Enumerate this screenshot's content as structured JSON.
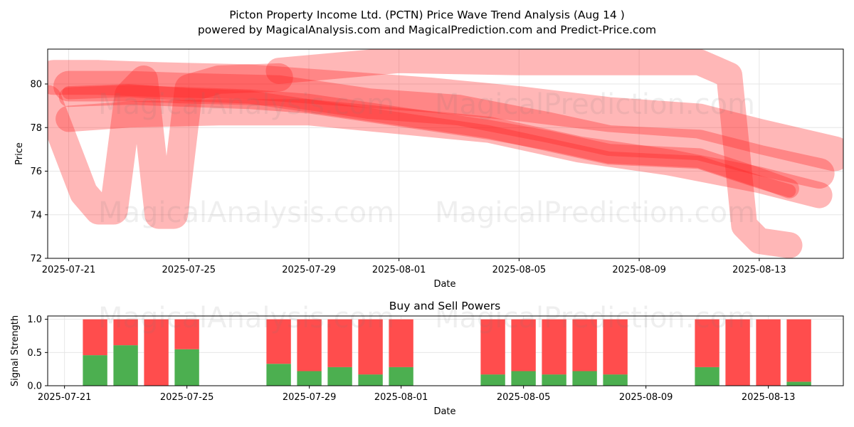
{
  "header": {
    "title": "Picton Property Income Ltd. (PCTN) Price Wave Trend Analysis (Aug 14 )",
    "subtitle": "powered by MagicalAnalysis.com and MagicalPrediction.com and Predict-Price.com"
  },
  "watermarks": [
    "MagicalAnalysis.com",
    "MagicalPrediction.com"
  ],
  "colors": {
    "wave": "#ff2020",
    "buy": "#4caf50",
    "sell": "#ff4d4d",
    "grid": "#e6e6e6"
  },
  "chart_data": [
    {
      "type": "area",
      "title": "",
      "xlabel": "Date",
      "ylabel": "Price",
      "ylim": [
        72,
        81.6
      ],
      "xlim": [
        "2025-07-20.3",
        "2025-08-15.8"
      ],
      "yticks": [
        72,
        74,
        76,
        78,
        80
      ],
      "xticks": [
        "2025-07-21",
        "2025-07-25",
        "2025-07-29",
        "2025-08-01",
        "2025-08-05",
        "2025-08-09",
        "2025-08-13"
      ],
      "grid": true,
      "series": [
        {
          "name": "",
          "band": 0.6,
          "x": [
            "2025-07-21",
            "2025-07-23",
            "2025-07-25",
            "2025-07-27",
            "2025-07-29",
            "2025-07-31",
            "2025-08-02",
            "2025-08-04",
            "2025-08-06",
            "2025-08-08",
            "2025-08-11",
            "2025-08-13",
            "2025-08-14"
          ],
          "y": [
            79.6,
            79.7,
            79.5,
            79.4,
            79.0,
            78.6,
            78.2,
            77.8,
            77.2,
            76.6,
            76.4,
            75.5,
            75.1
          ]
        },
        {
          "name": "",
          "band": 0.9,
          "x": [
            "2025-07-21",
            "2025-07-23",
            "2025-07-25",
            "2025-07-27",
            "2025-07-29",
            "2025-07-31",
            "2025-08-02",
            "2025-08-04",
            "2025-08-06",
            "2025-08-08",
            "2025-08-11",
            "2025-08-13",
            "2025-08-14"
          ],
          "y": [
            79.4,
            79.5,
            79.4,
            79.3,
            79.1,
            78.7,
            78.3,
            77.9,
            77.4,
            76.8,
            76.6,
            75.7,
            75.2
          ]
        },
        {
          "name": "",
          "band": 1.4,
          "x": [
            "2025-07-21",
            "2025-07-23",
            "2025-07-25",
            "2025-07-28",
            "2025-07-31",
            "2025-08-03",
            "2025-08-06",
            "2025-08-08",
            "2025-08-11",
            "2025-08-13",
            "2025-08-15"
          ],
          "y": [
            79.9,
            79.9,
            79.8,
            79.7,
            79.1,
            78.8,
            78.0,
            77.4,
            77.2,
            76.5,
            75.9
          ]
        },
        {
          "name": "",
          "band": 1.6,
          "x": [
            "2025-07-20.5",
            "2025-07-22",
            "2025-07-24",
            "2025-07-27",
            "2025-07-30",
            "2025-08-02",
            "2025-08-05",
            "2025-08-08",
            "2025-08-11",
            "2025-08-13",
            "2025-08-15.5"
          ],
          "y": [
            80.3,
            80.3,
            80.2,
            80.1,
            79.8,
            79.5,
            79.1,
            78.6,
            78.3,
            77.6,
            76.8
          ]
        },
        {
          "name": "",
          "band": 1.2,
          "x": [
            "2025-07-21",
            "2025-07-23",
            "2025-07-26",
            "2025-07-29",
            "2025-08-01",
            "2025-08-04",
            "2025-08-07",
            "2025-08-10",
            "2025-08-13",
            "2025-08-15"
          ],
          "y": [
            78.4,
            78.6,
            78.7,
            78.7,
            78.3,
            77.9,
            77.0,
            76.4,
            75.6,
            74.9
          ]
        },
        {
          "name": "",
          "band": 1.3,
          "x": [
            "2025-07-20.3",
            "2025-07-21.5",
            "2025-07-22",
            "2025-07-22.5",
            "2025-07-23",
            "2025-07-23.5",
            "2025-07-24",
            "2025-07-24.5",
            "2025-07-25",
            "2025-07-26",
            "2025-07-28"
          ],
          "y": [
            79.3,
            75.0,
            74.2,
            74.2,
            79.5,
            80.2,
            74.0,
            74.0,
            79.8,
            80.2,
            80.3
          ]
        },
        {
          "name": "",
          "band": 1.2,
          "x": [
            "2025-07-28",
            "2025-08-01",
            "2025-08-05",
            "2025-08-09",
            "2025-08-11",
            "2025-08-12",
            "2025-08-12.5",
            "2025-08-13",
            "2025-08-14"
          ],
          "y": [
            80.6,
            81.1,
            81.0,
            81.0,
            81.0,
            80.4,
            73.5,
            72.8,
            72.6
          ]
        }
      ]
    },
    {
      "type": "bar",
      "title": "Buy and Sell Powers",
      "xlabel": "Date",
      "ylabel": "Signal Strength",
      "ylim": [
        0,
        1.05
      ],
      "yticks": [
        "0.0",
        "0.5",
        "1.0"
      ],
      "xticks": [
        "2025-07-21",
        "2025-07-25",
        "2025-07-29",
        "2025-08-01",
        "2025-08-05",
        "2025-08-09",
        "2025-08-13"
      ],
      "categories": [
        "2025-07-22",
        "2025-07-23",
        "2025-07-24",
        "2025-07-25",
        "2025-07-28",
        "2025-07-29",
        "2025-07-30",
        "2025-07-31",
        "2025-08-01",
        "2025-08-04",
        "2025-08-05",
        "2025-08-06",
        "2025-08-07",
        "2025-08-08",
        "2025-08-11",
        "2025-08-12",
        "2025-08-13",
        "2025-08-14"
      ],
      "series": [
        {
          "name": "",
          "values": [
            0.46,
            0.61,
            0.0,
            0.55,
            0.33,
            0.22,
            0.28,
            0.17,
            0.28,
            0.17,
            0.22,
            0.17,
            0.22,
            0.17,
            0.28,
            0.0,
            0.0,
            0.06
          ]
        },
        {
          "name": "",
          "values": [
            0.54,
            0.39,
            1.0,
            0.45,
            0.67,
            0.78,
            0.72,
            0.83,
            0.72,
            0.83,
            0.78,
            0.83,
            0.78,
            0.83,
            0.72,
            1.0,
            1.0,
            0.94
          ]
        }
      ]
    }
  ]
}
